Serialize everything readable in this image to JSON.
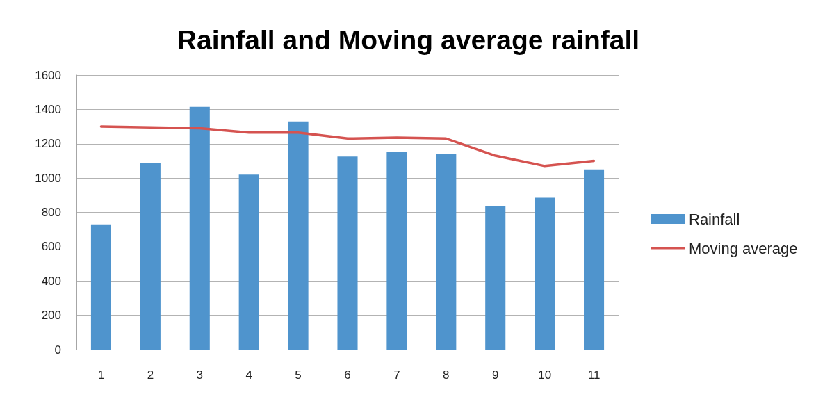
{
  "chart_data": {
    "type": "bar",
    "title": "Rainfall and Moving average rainfall",
    "categories": [
      "1",
      "2",
      "3",
      "4",
      "5",
      "6",
      "7",
      "8",
      "9",
      "10",
      "11"
    ],
    "series": [
      {
        "name": "Rainfall",
        "color": "#4f94cd",
        "values": [
          730,
          1090,
          1415,
          1020,
          1330,
          1125,
          1150,
          1140,
          835,
          885,
          1050
        ]
      },
      {
        "name": "Moving average",
        "type": "line",
        "color": "#d55350",
        "values": [
          1300,
          1295,
          1290,
          1265,
          1265,
          1230,
          1235,
          1230,
          1130,
          1070,
          1100
        ]
      }
    ],
    "ylim": [
      0,
      1600
    ],
    "yticks": [
      0,
      200,
      400,
      600,
      800,
      1000,
      1200,
      1400,
      1600
    ],
    "grid": "y",
    "legend": "right",
    "marker": "none",
    "line_style": "solid"
  }
}
